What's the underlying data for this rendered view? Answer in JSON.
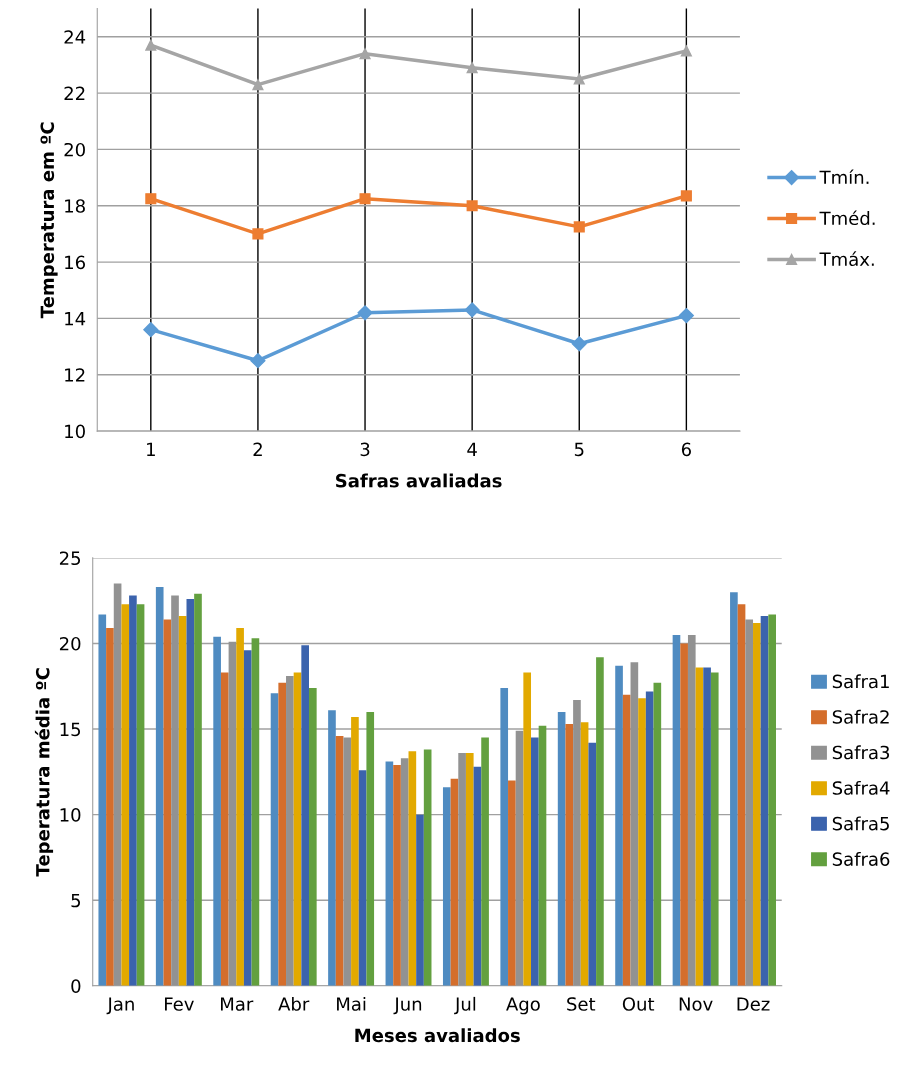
{
  "chart_data": [
    {
      "type": "line",
      "ylabel": "Temperatura em ºC",
      "xlabel": "Safras avaliadas",
      "categories": [
        "1",
        "2",
        "3",
        "4",
        "5",
        "6"
      ],
      "ylim": [
        10,
        25
      ],
      "yticks": [
        10,
        12,
        14,
        16,
        18,
        20,
        22,
        24
      ],
      "grid": true,
      "legend": "right",
      "line_style": "solid",
      "series": [
        {
          "name": "Tmín.",
          "color": "#5b9bd5",
          "marker": "diamond",
          "values": [
            13.6,
            12.5,
            14.2,
            14.3,
            13.1,
            14.1
          ]
        },
        {
          "name": "Tméd.",
          "color": "#ed7d31",
          "marker": "square",
          "values": [
            18.25,
            17.0,
            18.25,
            18.0,
            17.25,
            18.35
          ]
        },
        {
          "name": "Tmáx.",
          "color": "#a5a5a5",
          "marker": "triangle",
          "values": [
            23.7,
            22.3,
            23.4,
            22.9,
            22.5,
            23.5
          ]
        }
      ]
    },
    {
      "type": "bar",
      "ylabel": "Teperatura média ºC",
      "xlabel": "Meses avaliados",
      "categories": [
        "Jan",
        "Fev",
        "Mar",
        "Abr",
        "Mai",
        "Jun",
        "Jul",
        "Ago",
        "Set",
        "Out",
        "Nov",
        "Dez"
      ],
      "ylim": [
        0,
        25
      ],
      "yticks": [
        0,
        5,
        10,
        15,
        20,
        25
      ],
      "grid": "y",
      "legend": "right",
      "series": [
        {
          "name": "Safra1",
          "color": "#4f8bc1",
          "values": [
            21.7,
            23.3,
            20.4,
            17.1,
            16.1,
            13.1,
            11.6,
            17.4,
            16.0,
            18.7,
            20.5,
            23.0
          ]
        },
        {
          "name": "Safra2",
          "color": "#d46e2c",
          "values": [
            20.9,
            21.4,
            18.3,
            17.7,
            14.6,
            12.9,
            12.1,
            12.0,
            15.3,
            17.0,
            20.0,
            22.3
          ]
        },
        {
          "name": "Safra3",
          "color": "#929292",
          "values": [
            23.5,
            22.8,
            20.1,
            18.1,
            14.5,
            13.3,
            13.6,
            14.9,
            16.7,
            18.9,
            20.5,
            21.4
          ]
        },
        {
          "name": "Safra4",
          "color": "#e2a900",
          "values": [
            22.3,
            21.6,
            20.9,
            18.3,
            15.7,
            13.7,
            13.6,
            18.3,
            15.4,
            16.8,
            18.6,
            21.2
          ]
        },
        {
          "name": "Safra5",
          "color": "#3b63ad",
          "values": [
            22.8,
            22.6,
            19.6,
            19.9,
            12.6,
            10.0,
            12.8,
            14.5,
            14.2,
            17.2,
            18.6,
            21.6
          ]
        },
        {
          "name": "Safra6",
          "color": "#63a03f",
          "values": [
            22.3,
            22.9,
            20.3,
            17.4,
            16.0,
            13.8,
            14.5,
            15.2,
            19.2,
            17.7,
            18.3,
            21.7
          ]
        }
      ]
    }
  ]
}
